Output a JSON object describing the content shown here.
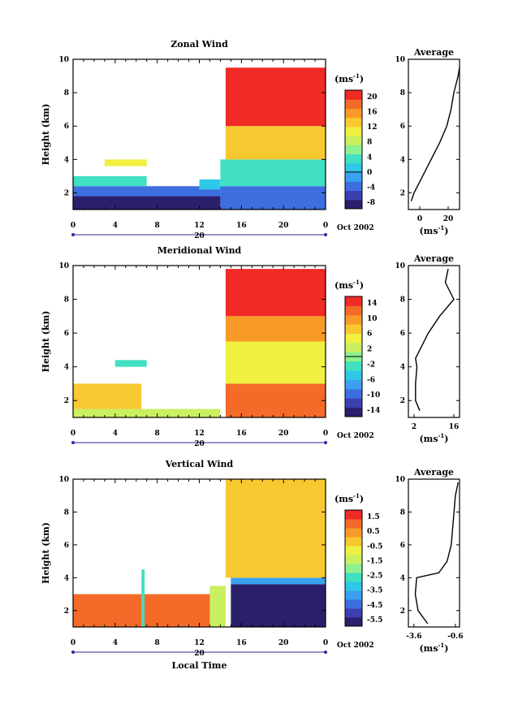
{
  "colors": {
    "scale": [
      "#2a1f6a",
      "#3d3fb0",
      "#3d6ee0",
      "#3aa0f0",
      "#2ec8e8",
      "#40e0c0",
      "#8ef090",
      "#c8f060",
      "#f0f040",
      "#f8c830",
      "#f89a28",
      "#f46a28",
      "#f02a24"
    ]
  },
  "x_axis": {
    "ticks": [
      "0",
      "4",
      "8",
      "12",
      "16",
      "20",
      "0"
    ],
    "day_label": "20",
    "date_label": "Oct 2002",
    "title": "Local Time"
  },
  "panels": [
    {
      "key": "zonal",
      "title": "Zonal Wind",
      "ylabel": "Height (km)",
      "y_ticks": [
        "2",
        "4",
        "6",
        "8",
        "10"
      ],
      "unit_label": "(ms",
      "unit_exp": "-1",
      "unit_close": ")",
      "colorbar_ticks": [
        "20",
        "16",
        "12",
        "8",
        "4",
        "0",
        "-4",
        "-8"
      ],
      "avg_title": "Average",
      "avg_y_ticks": [
        "2",
        "4",
        "6",
        "8",
        "10"
      ],
      "avg_x_ticks": [
        "0",
        "20"
      ],
      "avg_xlabel": "(ms",
      "avg_xlabel_exp": "-1",
      "avg_xlabel_close": ")"
    },
    {
      "key": "meridional",
      "title": "Meridional Wind",
      "ylabel": "Height (km)",
      "y_ticks": [
        "2",
        "4",
        "6",
        "8",
        "10"
      ],
      "unit_label": "(ms",
      "unit_exp": "-1",
      "unit_close": ")",
      "colorbar_ticks": [
        "14",
        "10",
        "6",
        "2",
        "-2",
        "-6",
        "-10",
        "-14"
      ],
      "avg_title": "Average",
      "avg_y_ticks": [
        "2",
        "4",
        "6",
        "8",
        "10"
      ],
      "avg_x_ticks": [
        "2",
        "16"
      ],
      "avg_xlabel": "(ms",
      "avg_xlabel_exp": "-1",
      "avg_xlabel_close": ")"
    },
    {
      "key": "vertical",
      "title": "Vertical Wind",
      "ylabel": "Height (km)",
      "y_ticks": [
        "2",
        "4",
        "6",
        "8",
        "10"
      ],
      "unit_label": "(ms",
      "unit_exp": "-1",
      "unit_close": ")",
      "colorbar_ticks": [
        "1.5",
        "0.5",
        "-0.5",
        "-1.5",
        "-2.5",
        "-3.5",
        "-4.5",
        "-5.5"
      ],
      "avg_title": "Average",
      "avg_y_ticks": [
        "2",
        "4",
        "6",
        "8",
        "10"
      ],
      "avg_x_ticks": [
        "-3.6",
        "-0.6"
      ],
      "avg_xlabel": "(ms",
      "avg_xlabel_exp": "-1",
      "avg_xlabel_close": ")"
    }
  ],
  "chart_data": [
    {
      "type": "heatmap",
      "title": "Zonal Wind",
      "ylabel": "Height (km)",
      "xlabel": "",
      "x_range_hours": [
        0,
        24
      ],
      "y_range_km": [
        1,
        10
      ],
      "colorbar_range": [
        -8,
        20
      ],
      "regions": [
        {
          "x": [
            0,
            14
          ],
          "y": [
            1.0,
            1.8
          ],
          "value": -6
        },
        {
          "x": [
            0,
            14
          ],
          "y": [
            1.8,
            2.4
          ],
          "value": -2
        },
        {
          "x": [
            0,
            7
          ],
          "y": [
            2.4,
            3.0
          ],
          "value": 4
        },
        {
          "x": [
            3,
            7
          ],
          "y": [
            3.6,
            4.0
          ],
          "value": 10
        },
        {
          "x": [
            12,
            14
          ],
          "y": [
            2.2,
            2.8
          ],
          "value": 2
        },
        {
          "x": [
            14,
            24
          ],
          "y": [
            1.0,
            2.4
          ],
          "value": -2
        },
        {
          "x": [
            14,
            24
          ],
          "y": [
            2.4,
            4.0
          ],
          "value": 4
        },
        {
          "x": [
            14.5,
            24
          ],
          "y": [
            4.0,
            6.0
          ],
          "value": 12
        },
        {
          "x": [
            14.5,
            24
          ],
          "y": [
            6.0,
            9.5
          ],
          "value": 20
        }
      ],
      "average_profile": {
        "xlabel": "(ms-1)",
        "x_range": [
          -8,
          28
        ],
        "height_km": [
          1.5,
          2,
          3,
          4,
          5,
          6,
          7,
          8,
          9,
          9.5
        ],
        "value": [
          -6,
          -4,
          2,
          8,
          14,
          19,
          22,
          24,
          27,
          28
        ]
      }
    },
    {
      "type": "heatmap",
      "title": "Meridional Wind",
      "ylabel": "Height (km)",
      "xlabel": "",
      "x_range_hours": [
        0,
        24
      ],
      "y_range_km": [
        1,
        10
      ],
      "colorbar_range": [
        -14,
        14
      ],
      "regions": [
        {
          "x": [
            0,
            14
          ],
          "y": [
            1.0,
            1.5
          ],
          "value": 2
        },
        {
          "x": [
            0,
            6.5
          ],
          "y": [
            1.5,
            3.0
          ],
          "value": 6
        },
        {
          "x": [
            4,
            7
          ],
          "y": [
            4.0,
            4.4
          ],
          "value": -2
        },
        {
          "x": [
            14.5,
            24
          ],
          "y": [
            1.0,
            3.0
          ],
          "value": 10
        },
        {
          "x": [
            14.5,
            24
          ],
          "y": [
            3.0,
            5.5
          ],
          "value": 4
        },
        {
          "x": [
            14.5,
            24
          ],
          "y": [
            5.5,
            7.0
          ],
          "value": 8
        },
        {
          "x": [
            14.5,
            24
          ],
          "y": [
            7.0,
            9.8
          ],
          "value": 14
        }
      ],
      "average_profile": {
        "xlabel": "(ms-1)",
        "x_range": [
          0,
          18
        ],
        "height_km": [
          1.4,
          2,
          3,
          4,
          4.5,
          5,
          6,
          7,
          8,
          9,
          9.8
        ],
        "value": [
          4,
          2.5,
          2.5,
          3,
          2.5,
          4,
          7,
          11,
          16,
          13,
          14
        ]
      }
    },
    {
      "type": "heatmap",
      "title": "Vertical Wind",
      "ylabel": "Height (km)",
      "xlabel": "Local Time",
      "x_range_hours": [
        0,
        24
      ],
      "y_range_km": [
        1,
        10
      ],
      "colorbar_range": [
        -5.5,
        1.5
      ],
      "regions": [
        {
          "x": [
            0,
            14
          ],
          "y": [
            1.0,
            3.0
          ],
          "value": 0.5
        },
        {
          "x": [
            6.5,
            6.8
          ],
          "y": [
            1.0,
            4.5
          ],
          "value": -2.5
        },
        {
          "x": [
            13,
            14.5
          ],
          "y": [
            1.0,
            3.5
          ],
          "value": -1.5
        },
        {
          "x": [
            15,
            24
          ],
          "y": [
            1.0,
            3.6
          ],
          "value": -5.5
        },
        {
          "x": [
            15,
            24
          ],
          "y": [
            3.6,
            4.0
          ],
          "value": -3.5
        },
        {
          "x": [
            14.5,
            24
          ],
          "y": [
            4.0,
            10.0
          ],
          "value": -0.5
        }
      ],
      "average_profile": {
        "xlabel": "(ms-1)",
        "x_range": [
          -4.0,
          -0.3
        ],
        "height_km": [
          1.2,
          2,
          3,
          4,
          4.3,
          5,
          6,
          7,
          8,
          9,
          9.8
        ],
        "value": [
          -2.6,
          -3.3,
          -3.5,
          -3.4,
          -1.8,
          -1.2,
          -0.9,
          -0.8,
          -0.7,
          -0.6,
          -0.4
        ]
      }
    }
  ]
}
